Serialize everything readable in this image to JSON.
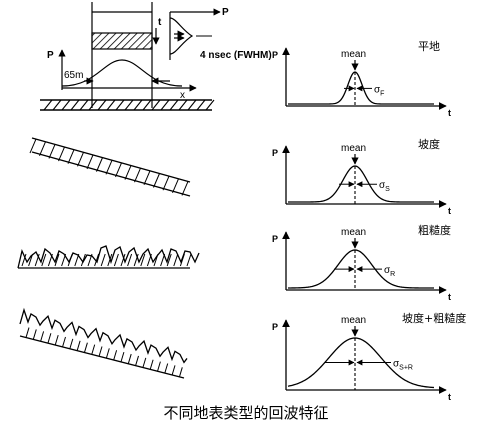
{
  "caption": "不同地表类型的回波特征",
  "beam": {
    "p_label": "P",
    "x_label": "x",
    "dist_label": "65m",
    "t_label": "t",
    "p_label_pulse": "P",
    "pulse_label": "4 nsec (FWHM)"
  },
  "panels": [
    {
      "title": "平地",
      "p": "P",
      "t": "t",
      "mean": "mean",
      "sigma": "σ",
      "sub": "F",
      "terrain": "flat"
    },
    {
      "title": "坡度",
      "p": "P",
      "t": "t",
      "mean": "mean",
      "sigma": "σ",
      "sub": "S",
      "terrain": "slope"
    },
    {
      "title": "粗糙度",
      "p": "P",
      "t": "t",
      "mean": "mean",
      "sigma": "σ",
      "sub": "R",
      "terrain": "rough"
    },
    {
      "title": "坡度+粗糙度",
      "p": "P",
      "t": "t",
      "mean": "mean",
      "sigma": "σ",
      "sub": "S+R",
      "terrain": "slope+rough"
    }
  ]
}
